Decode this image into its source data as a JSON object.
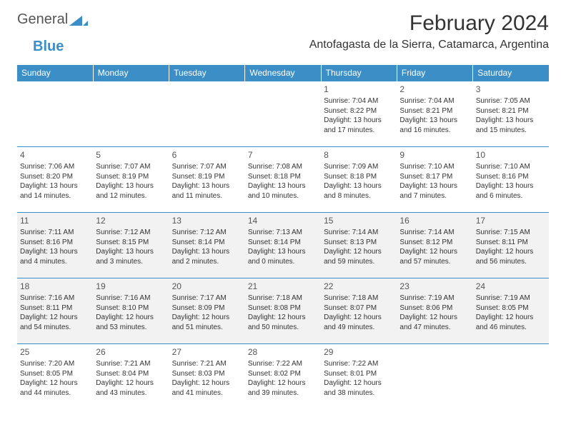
{
  "logo": {
    "word1": "General",
    "word2": "Blue",
    "icon_color": "#3b8fc6",
    "text1_color": "#555555",
    "text2_color": "#3b8fc6"
  },
  "title": "February 2024",
  "location": "Antofagasta de la Sierra, Catamarca, Argentina",
  "header_bg": "#3b8fc6",
  "header_text_color": "#ffffff",
  "row_border_color": "#3b8fc6",
  "shaded_bg": "#f2f2f2",
  "page_bg": "#ffffff",
  "title_fontsize": 30,
  "location_fontsize": 16,
  "cell_fontsize": 10,
  "daynum_fontsize": 12,
  "day_headers": [
    "Sunday",
    "Monday",
    "Tuesday",
    "Wednesday",
    "Thursday",
    "Friday",
    "Saturday"
  ],
  "shaded_rows": [
    2,
    3
  ],
  "weeks": [
    [
      null,
      null,
      null,
      null,
      {
        "n": "1",
        "sr": "Sunrise: 7:04 AM",
        "ss": "Sunset: 8:22 PM",
        "d1": "Daylight: 13 hours",
        "d2": "and 17 minutes."
      },
      {
        "n": "2",
        "sr": "Sunrise: 7:04 AM",
        "ss": "Sunset: 8:21 PM",
        "d1": "Daylight: 13 hours",
        "d2": "and 16 minutes."
      },
      {
        "n": "3",
        "sr": "Sunrise: 7:05 AM",
        "ss": "Sunset: 8:21 PM",
        "d1": "Daylight: 13 hours",
        "d2": "and 15 minutes."
      }
    ],
    [
      {
        "n": "4",
        "sr": "Sunrise: 7:06 AM",
        "ss": "Sunset: 8:20 PM",
        "d1": "Daylight: 13 hours",
        "d2": "and 14 minutes."
      },
      {
        "n": "5",
        "sr": "Sunrise: 7:07 AM",
        "ss": "Sunset: 8:19 PM",
        "d1": "Daylight: 13 hours",
        "d2": "and 12 minutes."
      },
      {
        "n": "6",
        "sr": "Sunrise: 7:07 AM",
        "ss": "Sunset: 8:19 PM",
        "d1": "Daylight: 13 hours",
        "d2": "and 11 minutes."
      },
      {
        "n": "7",
        "sr": "Sunrise: 7:08 AM",
        "ss": "Sunset: 8:18 PM",
        "d1": "Daylight: 13 hours",
        "d2": "and 10 minutes."
      },
      {
        "n": "8",
        "sr": "Sunrise: 7:09 AM",
        "ss": "Sunset: 8:18 PM",
        "d1": "Daylight: 13 hours",
        "d2": "and 8 minutes."
      },
      {
        "n": "9",
        "sr": "Sunrise: 7:10 AM",
        "ss": "Sunset: 8:17 PM",
        "d1": "Daylight: 13 hours",
        "d2": "and 7 minutes."
      },
      {
        "n": "10",
        "sr": "Sunrise: 7:10 AM",
        "ss": "Sunset: 8:16 PM",
        "d1": "Daylight: 13 hours",
        "d2": "and 6 minutes."
      }
    ],
    [
      {
        "n": "11",
        "sr": "Sunrise: 7:11 AM",
        "ss": "Sunset: 8:16 PM",
        "d1": "Daylight: 13 hours",
        "d2": "and 4 minutes."
      },
      {
        "n": "12",
        "sr": "Sunrise: 7:12 AM",
        "ss": "Sunset: 8:15 PM",
        "d1": "Daylight: 13 hours",
        "d2": "and 3 minutes."
      },
      {
        "n": "13",
        "sr": "Sunrise: 7:12 AM",
        "ss": "Sunset: 8:14 PM",
        "d1": "Daylight: 13 hours",
        "d2": "and 2 minutes."
      },
      {
        "n": "14",
        "sr": "Sunrise: 7:13 AM",
        "ss": "Sunset: 8:14 PM",
        "d1": "Daylight: 13 hours",
        "d2": "and 0 minutes."
      },
      {
        "n": "15",
        "sr": "Sunrise: 7:14 AM",
        "ss": "Sunset: 8:13 PM",
        "d1": "Daylight: 12 hours",
        "d2": "and 59 minutes."
      },
      {
        "n": "16",
        "sr": "Sunrise: 7:14 AM",
        "ss": "Sunset: 8:12 PM",
        "d1": "Daylight: 12 hours",
        "d2": "and 57 minutes."
      },
      {
        "n": "17",
        "sr": "Sunrise: 7:15 AM",
        "ss": "Sunset: 8:11 PM",
        "d1": "Daylight: 12 hours",
        "d2": "and 56 minutes."
      }
    ],
    [
      {
        "n": "18",
        "sr": "Sunrise: 7:16 AM",
        "ss": "Sunset: 8:11 PM",
        "d1": "Daylight: 12 hours",
        "d2": "and 54 minutes."
      },
      {
        "n": "19",
        "sr": "Sunrise: 7:16 AM",
        "ss": "Sunset: 8:10 PM",
        "d1": "Daylight: 12 hours",
        "d2": "and 53 minutes."
      },
      {
        "n": "20",
        "sr": "Sunrise: 7:17 AM",
        "ss": "Sunset: 8:09 PM",
        "d1": "Daylight: 12 hours",
        "d2": "and 51 minutes."
      },
      {
        "n": "21",
        "sr": "Sunrise: 7:18 AM",
        "ss": "Sunset: 8:08 PM",
        "d1": "Daylight: 12 hours",
        "d2": "and 50 minutes."
      },
      {
        "n": "22",
        "sr": "Sunrise: 7:18 AM",
        "ss": "Sunset: 8:07 PM",
        "d1": "Daylight: 12 hours",
        "d2": "and 49 minutes."
      },
      {
        "n": "23",
        "sr": "Sunrise: 7:19 AM",
        "ss": "Sunset: 8:06 PM",
        "d1": "Daylight: 12 hours",
        "d2": "and 47 minutes."
      },
      {
        "n": "24",
        "sr": "Sunrise: 7:19 AM",
        "ss": "Sunset: 8:05 PM",
        "d1": "Daylight: 12 hours",
        "d2": "and 46 minutes."
      }
    ],
    [
      {
        "n": "25",
        "sr": "Sunrise: 7:20 AM",
        "ss": "Sunset: 8:05 PM",
        "d1": "Daylight: 12 hours",
        "d2": "and 44 minutes."
      },
      {
        "n": "26",
        "sr": "Sunrise: 7:21 AM",
        "ss": "Sunset: 8:04 PM",
        "d1": "Daylight: 12 hours",
        "d2": "and 43 minutes."
      },
      {
        "n": "27",
        "sr": "Sunrise: 7:21 AM",
        "ss": "Sunset: 8:03 PM",
        "d1": "Daylight: 12 hours",
        "d2": "and 41 minutes."
      },
      {
        "n": "28",
        "sr": "Sunrise: 7:22 AM",
        "ss": "Sunset: 8:02 PM",
        "d1": "Daylight: 12 hours",
        "d2": "and 39 minutes."
      },
      {
        "n": "29",
        "sr": "Sunrise: 7:22 AM",
        "ss": "Sunset: 8:01 PM",
        "d1": "Daylight: 12 hours",
        "d2": "and 38 minutes."
      },
      null,
      null
    ]
  ]
}
